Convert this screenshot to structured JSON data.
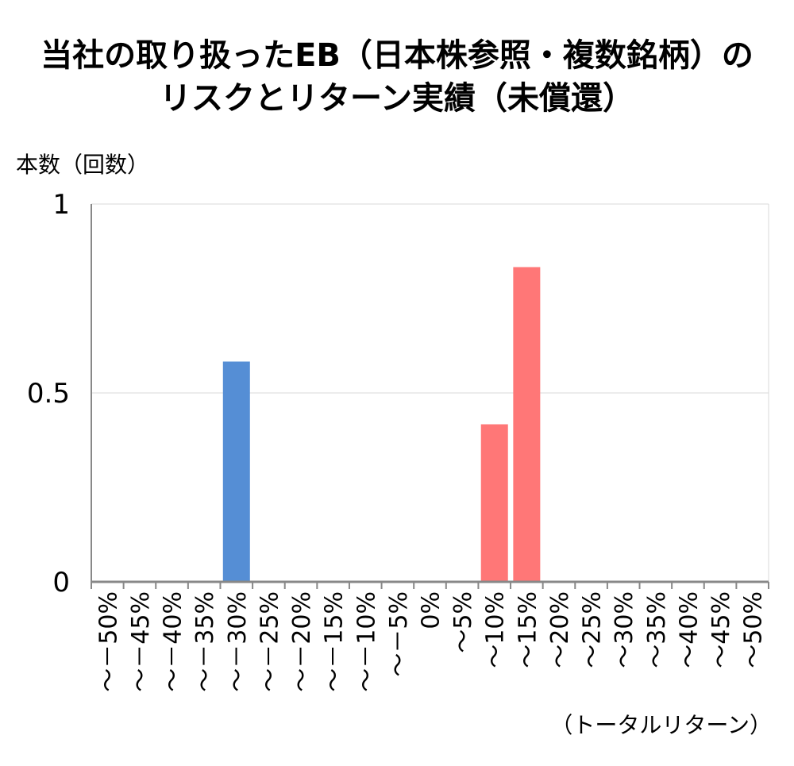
{
  "chart_data": {
    "type": "bar",
    "title_lines": [
      "当社の取り扱ったEB（日本株参照・複数銘柄）の",
      "リスクとリターン実績（未償還）"
    ],
    "ylabel": "本数（回数）",
    "xlabel": "（トータルリターン）",
    "ylim": [
      0,
      1
    ],
    "yticks": [
      {
        "value": 0,
        "label": "0"
      },
      {
        "value": 0.5,
        "label": "0.5"
      },
      {
        "value": 1,
        "label": "1"
      }
    ],
    "grid": true,
    "categories": [
      "～－50%",
      "～－45%",
      "～－40%",
      "～－35%",
      "～－30%",
      "～－25%",
      "～－20%",
      "～－15%",
      "～－10%",
      "～－5%",
      "0%",
      "～5%",
      "～10%",
      "～15%",
      "～20%",
      "～25%",
      "～30%",
      "～35%",
      "～40%",
      "～45%",
      "～50%"
    ],
    "values": [
      0,
      0,
      0,
      0,
      0.583,
      0,
      0,
      0,
      0,
      0,
      0,
      0,
      0.417,
      0.833,
      0,
      0,
      0,
      0,
      0,
      0,
      0
    ],
    "colors": {
      "negative": "#558ED5",
      "positive": "#FF7777"
    }
  }
}
